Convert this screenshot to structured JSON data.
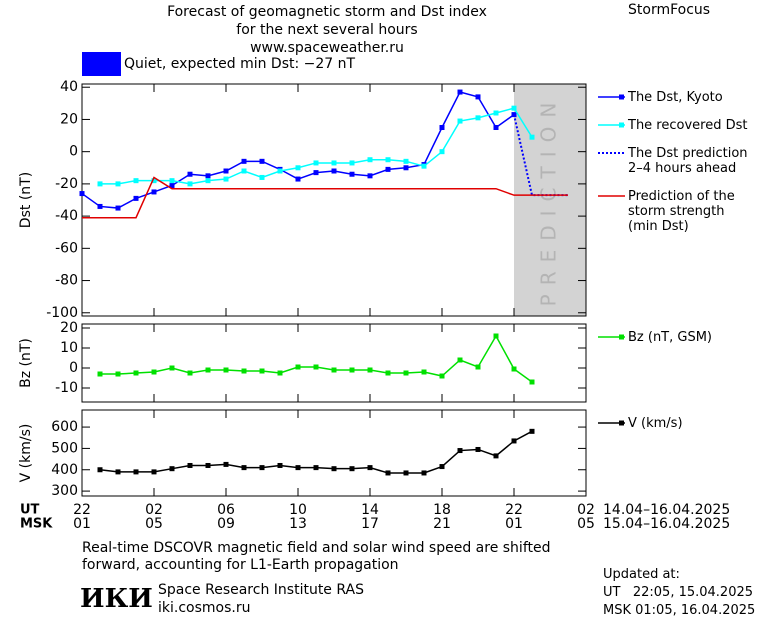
{
  "header": {
    "title_lines": [
      "Forecast of geomagnetic storm and Dst index",
      "for the next several hours",
      "www.spaceweather.ru"
    ],
    "brand": "StormFocus",
    "status": {
      "color": "#0000ff",
      "text": "Quiet, expected min Dst: −27 nT"
    }
  },
  "x_axis": {
    "xlim": [
      0,
      28
    ],
    "xticks": [
      {
        "value": 0,
        "label": "22"
      },
      {
        "value": 4,
        "label": "02"
      },
      {
        "value": 8,
        "label": "06"
      },
      {
        "value": 12,
        "label": "10"
      },
      {
        "value": 16,
        "label": "14"
      },
      {
        "value": 20,
        "label": "18"
      },
      {
        "value": 24,
        "label": "22"
      },
      {
        "value": 28,
        "label": "02"
      }
    ],
    "xticks_msk": [
      {
        "value": 0,
        "label": "01"
      },
      {
        "value": 4,
        "label": "05"
      },
      {
        "value": 8,
        "label": "09"
      },
      {
        "value": 12,
        "label": "13"
      },
      {
        "value": 16,
        "label": "17"
      },
      {
        "value": 20,
        "label": "21"
      },
      {
        "value": 24,
        "label": "01"
      },
      {
        "value": 28,
        "label": "05"
      }
    ],
    "row_names": [
      "UT",
      "MSK"
    ],
    "ranges": [
      "14.04–16.04.2025",
      "15.04–16.04.2025"
    ]
  },
  "chart_data": [
    {
      "type": "line",
      "ylabel": "Dst (nT)",
      "ylim": [
        -102,
        42
      ],
      "yticks": [
        -100,
        -80,
        -60,
        -40,
        -20,
        0,
        20,
        40
      ],
      "shaded_region": {
        "x": [
          24,
          28
        ],
        "label": "PREDICTION",
        "color": "#d3d3d3"
      },
      "series": [
        {
          "name": "The Dst, Kyoto",
          "color": "#0000ff",
          "markers": true,
          "x": [
            0,
            1,
            2,
            3,
            4,
            5,
            6,
            7,
            8,
            9,
            10,
            11,
            12,
            13,
            14,
            15,
            16,
            17,
            18,
            19,
            20,
            21,
            22,
            23,
            24
          ],
          "values": [
            -26,
            -34,
            -35,
            -29,
            -25,
            -21,
            -14,
            -15,
            -12,
            -6,
            -6,
            -11,
            -17,
            -13,
            -12,
            -14,
            -15,
            -11,
            -10,
            -8,
            15,
            37,
            34,
            15,
            23
          ]
        },
        {
          "name": "The recovered Dst",
          "color": "#00ffff",
          "markers": true,
          "x": [
            1,
            2,
            3,
            4,
            5,
            6,
            7,
            8,
            9,
            10,
            11,
            12,
            13,
            14,
            15,
            16,
            17,
            18,
            19,
            20,
            21,
            22,
            23,
            24,
            25
          ],
          "values": [
            -20,
            -20,
            -18,
            -18,
            -18,
            -20,
            -18,
            -17,
            -12,
            -16,
            -12,
            -10,
            -7,
            -7,
            -7,
            -5,
            -5,
            -6,
            -9,
            0,
            19,
            21,
            24,
            27,
            9
          ]
        },
        {
          "name": "The Dst prediction\n2–4 hours ahead",
          "color": "#0000ff",
          "dash": "dotted",
          "markers": false,
          "x": [
            24,
            25,
            27
          ],
          "values": [
            23,
            -27,
            -27
          ]
        },
        {
          "name": "Prediction of the\nstorm strength\n(min Dst)",
          "color": "#e00000",
          "markers": false,
          "x": [
            0,
            3,
            4,
            5,
            23,
            24,
            27
          ],
          "values": [
            -41,
            -41,
            -16,
            -23,
            -23,
            -27,
            -27
          ]
        }
      ]
    },
    {
      "type": "line",
      "ylabel": "Bz (nT)",
      "ylim": [
        -17,
        22
      ],
      "yticks": [
        -10,
        0,
        10,
        20
      ],
      "series": [
        {
          "name": "Bz (nT, GSM)",
          "color": "#00e000",
          "markers": true,
          "x": [
            1,
            2,
            3,
            4,
            5,
            6,
            7,
            8,
            9,
            10,
            11,
            12,
            13,
            14,
            15,
            16,
            17,
            18,
            19,
            20,
            21,
            22,
            23,
            24,
            25
          ],
          "values": [
            -3,
            -3,
            -2.5,
            -2,
            0,
            -2.5,
            -1,
            -1,
            -1.5,
            -1.5,
            -2.5,
            0.5,
            0.5,
            -1,
            -1,
            -1,
            -2.5,
            -2.5,
            -2,
            -4,
            4,
            0.5,
            16,
            -0.5,
            -7
          ]
        }
      ]
    },
    {
      "type": "line",
      "ylabel": "V (km/s)",
      "ylim": [
        277,
        680
      ],
      "yticks": [
        300,
        400,
        500,
        600
      ],
      "series": [
        {
          "name": "V (km/s)",
          "color": "#000000",
          "markers": true,
          "x": [
            1,
            2,
            3,
            4,
            5,
            6,
            7,
            8,
            9,
            10,
            11,
            12,
            13,
            14,
            15,
            16,
            17,
            18,
            19,
            20,
            21,
            22,
            23,
            24,
            25
          ],
          "values": [
            400,
            390,
            390,
            390,
            405,
            420,
            420,
            425,
            410,
            410,
            420,
            410,
            410,
            405,
            405,
            410,
            385,
            385,
            385,
            415,
            490,
            495,
            465,
            535,
            580
          ]
        }
      ]
    }
  ],
  "footer": {
    "note": "Real-time DSCOVR magnetic field and solar wind speed are shifted\nforward, accounting for L1-Earth propagation",
    "logo": "ИКИ",
    "institute": "Space Research Institute RAS",
    "site": "iki.cosmos.ru",
    "updated_lines": [
      "Updated at:",
      "UT   22:05, 15.04.2025",
      "MSK 01:05, 16.04.2025"
    ]
  }
}
